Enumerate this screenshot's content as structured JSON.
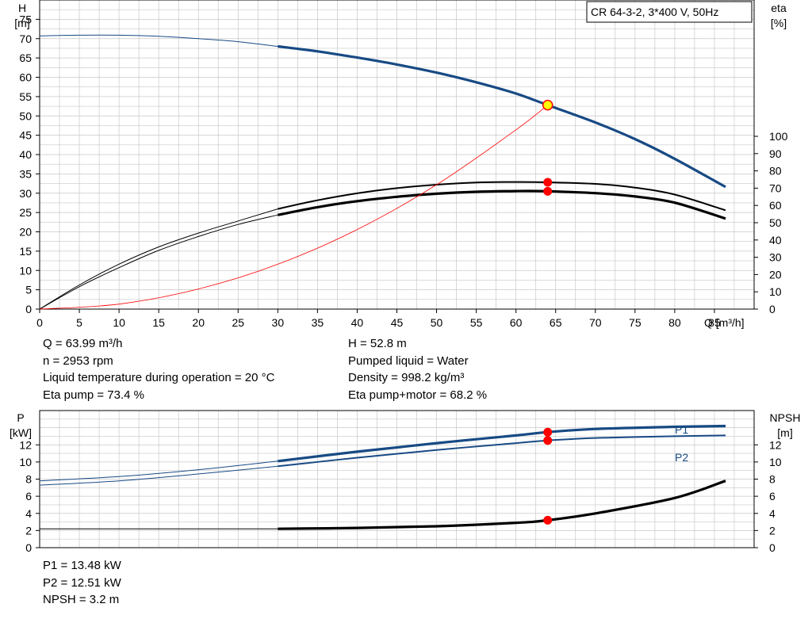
{
  "chart_data": [
    {
      "type": "line",
      "title": "CR 64-3-2, 3*400 V, 50Hz",
      "xlabel": "Q [m³/h]",
      "ylabel_left": [
        "H",
        "[m]"
      ],
      "ylabel_right": [
        "eta",
        "[%]"
      ],
      "xlim": [
        0,
        90
      ],
      "ylim_left": [
        0,
        80
      ],
      "ylim_right": [
        0,
        100
      ],
      "x_ticks": [
        "0",
        "5",
        "10",
        "15",
        "20",
        "25",
        "30",
        "35",
        "40",
        "45",
        "50",
        "55",
        "60",
        "65",
        "70",
        "75",
        "80",
        "85"
      ],
      "y_ticks_left": [
        "0",
        "5",
        "10",
        "15",
        "20",
        "25",
        "30",
        "35",
        "40",
        "45",
        "50",
        "55",
        "60",
        "65",
        "70",
        "75"
      ],
      "y_ticks_right": [
        "0",
        "10",
        "20",
        "30",
        "40",
        "50",
        "60",
        "70",
        "80",
        "90",
        "100"
      ],
      "grid": true,
      "series": [
        {
          "id": "H",
          "axis": "left",
          "color": "#174a84",
          "x": [
            0,
            5,
            10,
            15,
            20,
            25,
            30,
            35,
            40,
            45,
            50,
            55,
            60,
            64,
            70,
            75,
            80,
            86.4
          ],
          "y": [
            70.7,
            70.9,
            70.9,
            70.6,
            70.0,
            69.2,
            68.0,
            66.7,
            65.1,
            63.3,
            61.2,
            58.7,
            55.8,
            52.8,
            48.3,
            44.0,
            38.9,
            31.6
          ]
        },
        {
          "id": "eta_pump",
          "axis": "right",
          "color": "#000000",
          "x": [
            0,
            5,
            10,
            15,
            20,
            25,
            30,
            35,
            40,
            45,
            50,
            55,
            60,
            64,
            70,
            75,
            80,
            86.4
          ],
          "y": [
            0,
            14,
            26,
            36,
            44,
            51,
            58,
            63,
            67,
            70,
            72,
            73.3,
            73.6,
            73.4,
            72.5,
            70.3,
            66.3,
            57.2
          ]
        },
        {
          "id": "eta_pump_motor",
          "axis": "right",
          "color": "#000000",
          "x": [
            0,
            5,
            10,
            15,
            20,
            25,
            30,
            35,
            40,
            45,
            50,
            55,
            60,
            64,
            70,
            75,
            80,
            86.4
          ],
          "y": [
            0,
            13,
            24,
            34,
            42,
            49,
            54.5,
            59,
            62.5,
            65,
            66.8,
            67.9,
            68.3,
            68.2,
            67.1,
            65.2,
            61.6,
            52.4
          ]
        },
        {
          "id": "system_curve",
          "axis": "left",
          "color": "#ff0000",
          "x": [
            0,
            10,
            20,
            30,
            40,
            50,
            60,
            64
          ],
          "y": [
            0,
            1.3,
            5.2,
            11.6,
            20.6,
            32.2,
            46.4,
            52.8
          ]
        }
      ],
      "duty_points": [
        {
          "series": "H",
          "x": 64,
          "y": 52.8
        },
        {
          "series": "eta_pump",
          "x": 64,
          "y": 73.4
        },
        {
          "series": "eta_pump_motor",
          "x": 64,
          "y": 68.2
        }
      ]
    },
    {
      "type": "line",
      "ylabel_left": [
        "P",
        "[kW]"
      ],
      "ylabel_right": [
        "NPSH",
        "[m]"
      ],
      "xlim": [
        0,
        90
      ],
      "ylim_left": [
        0,
        16
      ],
      "ylim_right": [
        0,
        16
      ],
      "y_ticks_left": [
        "0",
        "2",
        "4",
        "6",
        "8",
        "10",
        "12"
      ],
      "y_ticks_right": [
        "0",
        "2",
        "4",
        "6",
        "8",
        "10",
        "12"
      ],
      "grid": true,
      "series": [
        {
          "name": "P1",
          "axis": "left",
          "color": "#174a84",
          "x": [
            0,
            10,
            20,
            30,
            40,
            50,
            60,
            64,
            70,
            80,
            86.4
          ],
          "y": [
            7.8,
            8.3,
            9.1,
            10.1,
            11.2,
            12.2,
            13.1,
            13.48,
            13.85,
            14.1,
            14.2
          ]
        },
        {
          "name": "P2",
          "axis": "left",
          "color": "#174a84",
          "x": [
            0,
            10,
            20,
            30,
            40,
            50,
            60,
            64,
            70,
            80,
            86.4
          ],
          "y": [
            7.3,
            7.8,
            8.6,
            9.5,
            10.5,
            11.4,
            12.2,
            12.51,
            12.8,
            13.0,
            13.1
          ]
        },
        {
          "name": "NPSH",
          "axis": "right",
          "color": "#000000",
          "x": [
            0,
            10,
            20,
            30,
            40,
            50,
            60,
            64,
            70,
            80,
            86.4
          ],
          "y": [
            2.2,
            2.2,
            2.2,
            2.2,
            2.3,
            2.5,
            2.9,
            3.2,
            4.0,
            5.8,
            7.8
          ]
        }
      ],
      "duty_points": [
        {
          "series": "P1",
          "x": 64,
          "y": 13.48
        },
        {
          "series": "P2",
          "x": 64,
          "y": 12.51
        },
        {
          "series": "NPSH",
          "x": 64,
          "y": 3.2
        }
      ]
    }
  ],
  "info": {
    "left": [
      "Q = 63.99 m³/h",
      "n = 2953 rpm",
      "Liquid temperature during operation = 20 °C",
      "Eta pump = 73.4 %"
    ],
    "right": [
      "H = 52.8 m",
      "Pumped liquid = Water",
      "Density = 998.2 kg/m³",
      "Eta pump+motor = 68.2 %"
    ],
    "bottom": [
      "P1 = 13.48 kW",
      "P2 = 12.51 kW",
      "NPSH = 3.2 m"
    ]
  },
  "colors": {
    "blue": "#174a84",
    "black": "#000000",
    "red": "#ff0000",
    "duty_fill": "#ffff00",
    "grid": "#c8c8c8"
  }
}
